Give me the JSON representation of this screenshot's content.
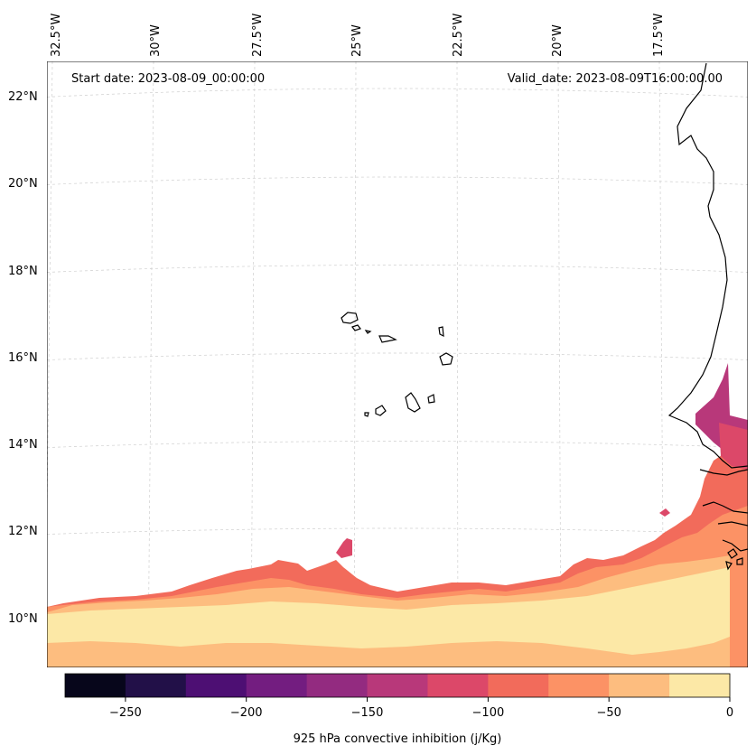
{
  "header": {
    "start_date": "Start date: 2023-08-09_00:00:00",
    "valid_date": "Valid_date: 2023-08-09T16:00:00.00"
  },
  "map": {
    "lon_labels": [
      "32.5°W",
      "30°W",
      "27.5°W",
      "25°W",
      "22.5°W",
      "20°W",
      "17.5°W"
    ],
    "lat_labels": [
      "22°N",
      "20°N",
      "18°N",
      "16°N",
      "14°N",
      "12°N",
      "10°N"
    ],
    "extent": {
      "lon_min": -32.7,
      "lon_max": -15.5,
      "lat_min": 8.9,
      "lat_max": 22.8
    }
  },
  "colorbar": {
    "label": "925 hPa convective inhibition (j/Kg)",
    "ticks": [
      "−250",
      "−200",
      "−150",
      "−100",
      "−50",
      "0"
    ],
    "levels": [
      -275,
      -250,
      -225,
      -200,
      -175,
      -150,
      -125,
      -100,
      -75,
      -50,
      -25,
      0
    ],
    "colors": [
      "#07061b",
      "#221048",
      "#4d0f73",
      "#731d80",
      "#932b80",
      "#b8387a",
      "#dc4869",
      "#f26b5b",
      "#fc9265",
      "#fdbd7f",
      "#fce8a6"
    ]
  }
}
